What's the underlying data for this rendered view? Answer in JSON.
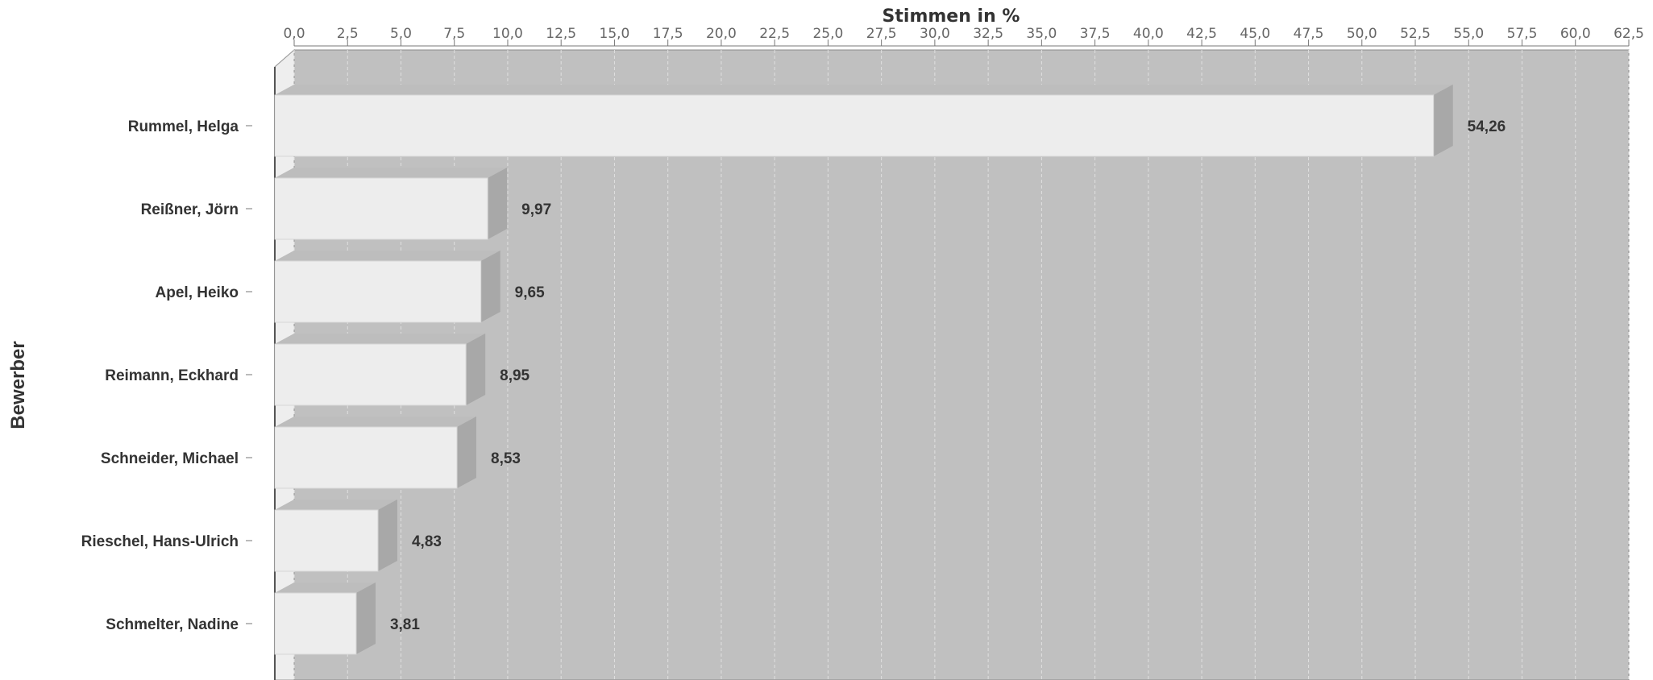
{
  "chart_data": {
    "type": "bar",
    "orientation": "horizontal",
    "title": "",
    "xlabel": "Stimmen in %",
    "ylabel": "Bewerber",
    "categories": [
      "Rummel, Helga",
      "Reißner, Jörn",
      "Apel, Heiko",
      "Reimann, Eckhard",
      "Schneider, Michael",
      "Rieschel, Hans-Ulrich",
      "Schmelter, Nadine"
    ],
    "values": [
      54.26,
      9.97,
      9.65,
      8.95,
      8.53,
      4.83,
      3.81
    ],
    "value_labels": [
      "54,26",
      "9,97",
      "9,65",
      "8,95",
      "8,53",
      "4,83",
      "3,81"
    ],
    "xlim": [
      0,
      62.5
    ],
    "tick_labels": [
      "0,0",
      "2,5",
      "5,0",
      "7,5",
      "10,0",
      "12,5",
      "15,0",
      "17,5",
      "20,0",
      "22,5",
      "25,0",
      "27,5",
      "30,0",
      "32,5",
      "35,0",
      "37,5",
      "40,0",
      "42,5",
      "45,0",
      "47,5",
      "50,0",
      "52,5",
      "55,0",
      "57,5",
      "60,0",
      "62,5"
    ],
    "x_axis_position": "top",
    "grid": true,
    "style": "3d",
    "colors": {
      "bar_face": "#ededed",
      "bar_top": "#f7f7f7",
      "bar_shadow": "#b0b0b0",
      "plot_bg": "#c0c0c0",
      "grid": "#e0e0e0"
    }
  }
}
